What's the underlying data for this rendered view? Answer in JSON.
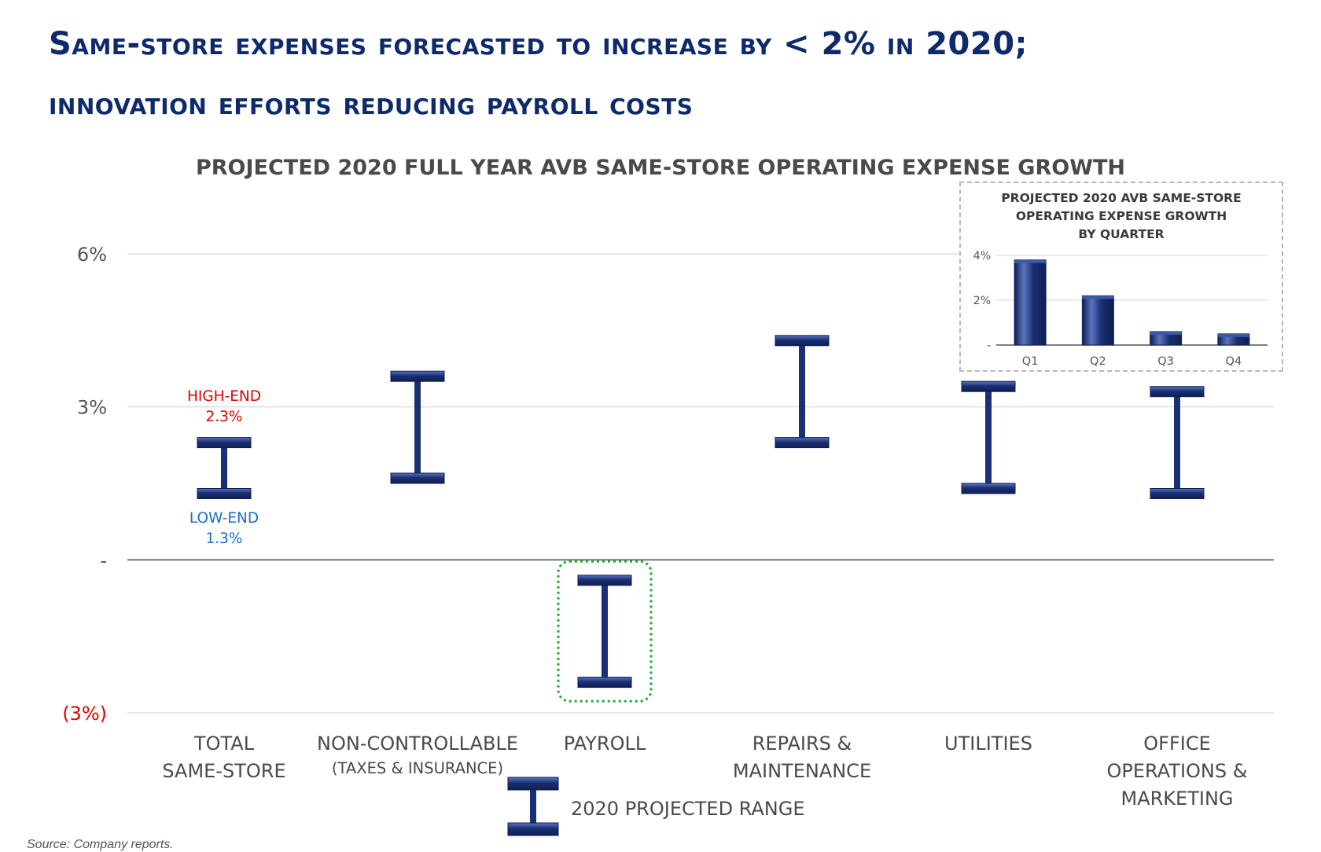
{
  "slide": {
    "title_line1": "Same-store expenses forecasted to increase by < 2% in 2020;",
    "title_line2": "innovation efforts reducing payroll costs",
    "source": "Source:  Company reports.",
    "legend_label": "2020 PROJECTED RANGE"
  },
  "colors": {
    "title": "#0e2a6b",
    "bar": "#1b2f73",
    "bar_highlight": "#5a75c0",
    "high_label": "#e30000",
    "low_label": "#1a6fc4",
    "negative_tick": "#e30000",
    "highlight_box": "#22a83a"
  },
  "chart_data": [
    {
      "type": "range",
      "title": "PROJECTED 2020 FULL YEAR AVB SAME-STORE OPERATING EXPENSE GROWTH",
      "ylim": [
        -3,
        6
      ],
      "yticks": [
        {
          "value": 6,
          "label": "6%"
        },
        {
          "value": 3,
          "label": "3%"
        },
        {
          "value": 0,
          "label": "-"
        },
        {
          "value": -3,
          "label": "(3%)"
        }
      ],
      "grid": true,
      "categories": [
        {
          "lines": [
            "TOTAL",
            "SAME-STORE"
          ],
          "sub": "",
          "low": 1.3,
          "high": 2.3
        },
        {
          "lines": [
            "NON-CONTROLLABLE"
          ],
          "sub": "(TAXES & INSURANCE)",
          "low": 1.6,
          "high": 3.6
        },
        {
          "lines": [
            "PAYROLL"
          ],
          "sub": "",
          "low": -2.4,
          "high": -0.4,
          "highlighted": true
        },
        {
          "lines": [
            "REPAIRS &",
            "MAINTENANCE"
          ],
          "sub": "",
          "low": 2.3,
          "high": 4.3
        },
        {
          "lines": [
            "UTILITIES"
          ],
          "sub": "",
          "low": 1.4,
          "high": 3.4
        },
        {
          "lines": [
            "OFFICE",
            "OPERATIONS &",
            "MARKETING"
          ],
          "sub": "",
          "low": 1.3,
          "high": 3.3
        }
      ],
      "annotations": {
        "high_label": "HIGH-END",
        "high_value": "2.3%",
        "low_label": "LOW-END",
        "low_value": "1.3%"
      }
    },
    {
      "type": "bar",
      "title_lines": [
        "PROJECTED 2020 AVB SAME-STORE",
        "OPERATING EXPENSE GROWTH",
        "BY QUARTER"
      ],
      "categories": [
        "Q1",
        "Q2",
        "Q3",
        "Q4"
      ],
      "values": [
        3.8,
        2.2,
        0.6,
        0.5
      ],
      "ylim": [
        0,
        4
      ],
      "yticks": [
        {
          "value": 4,
          "label": "4%"
        },
        {
          "value": 2,
          "label": "2%"
        },
        {
          "value": 0,
          "label": "-"
        }
      ],
      "grid": true
    }
  ]
}
